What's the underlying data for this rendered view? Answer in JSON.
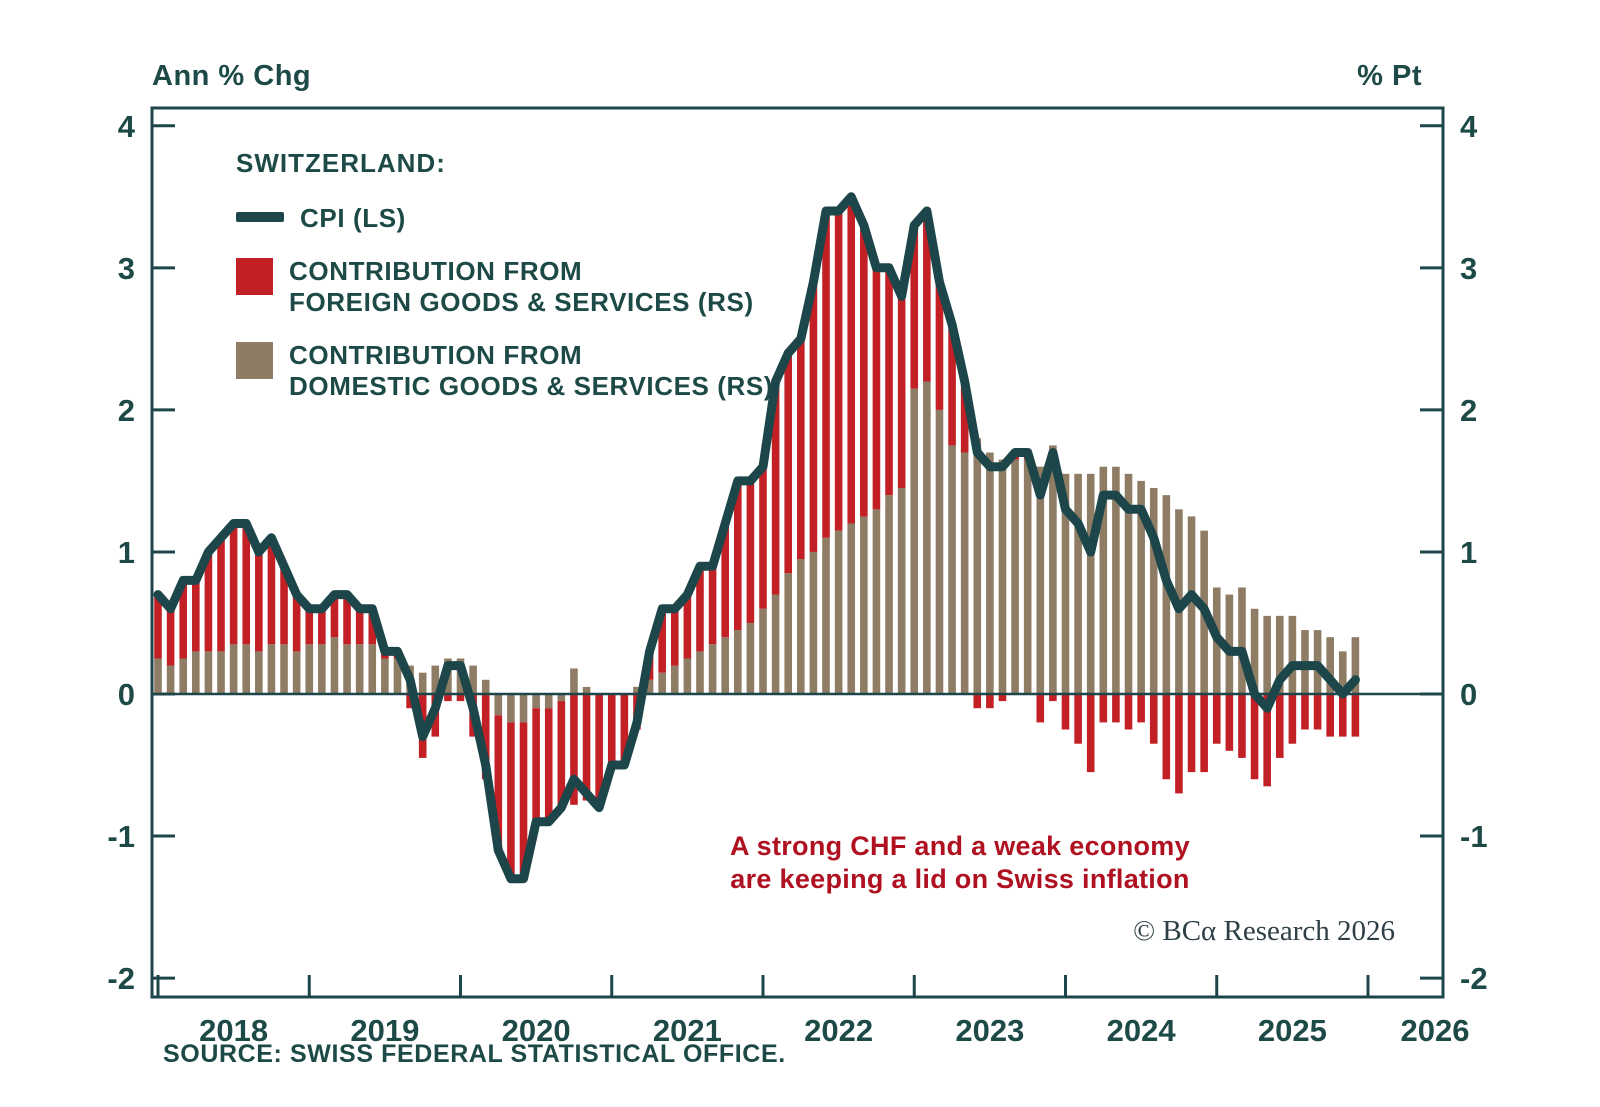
{
  "header": {
    "left_axis_title": "Ann % Chg",
    "right_axis_title": "% Pt"
  },
  "legend": {
    "title": "SWITZERLAND:",
    "cpi_label": "CPI (LS)",
    "foreign_label_line1": "CONTRIBUTION FROM",
    "foreign_label_line2": "FOREIGN GOODS & SERVICES (RS)",
    "domestic_label_line1": "CONTRIBUTION FROM",
    "domestic_label_line2": "DOMESTIC GOODS & SERVICES (RS)"
  },
  "annotation": {
    "line1": "A strong CHF and a weak economy",
    "line2": "are keeping a lid on Swiss inflation"
  },
  "copyright": "© BCα Research 2026",
  "source": "SOURCE: SWISS FEDERAL STATISTICAL OFFICE.",
  "colors": {
    "line": "#1d464a",
    "foreign": "#c32026",
    "domestic": "#8e7c64",
    "text": "#1d4a47",
    "annotation": "#b01121"
  },
  "chart_data": {
    "type": "bar",
    "subtype": "stacked-bars-with-line-overlay",
    "title": "SWITZERLAND: CPI and contributions",
    "xlabel": "",
    "ylabel_left": "Ann % Chg",
    "ylabel_right": "% Pt",
    "start_month": "2018-01",
    "frequency": "monthly",
    "ylim": [
      -2.13,
      4.13
    ],
    "yticks": [
      4,
      3,
      2,
      1,
      0,
      -1,
      -2
    ],
    "year_labels": [
      "2018",
      "2019",
      "2020",
      "2021",
      "2022",
      "2023",
      "2024",
      "2025",
      "2026"
    ],
    "grid": "zero-line-only",
    "legend_position": "top-left-inside",
    "series": [
      {
        "name": "CPI (LS)",
        "type": "line",
        "axis": "left",
        "values": [
          0.7,
          0.6,
          0.8,
          0.8,
          1.0,
          1.1,
          1.2,
          1.2,
          1.0,
          1.1,
          0.9,
          0.7,
          0.6,
          0.6,
          0.7,
          0.7,
          0.6,
          0.6,
          0.3,
          0.3,
          0.1,
          -0.3,
          -0.1,
          0.2,
          0.2,
          -0.1,
          -0.5,
          -1.1,
          -1.3,
          -1.3,
          -0.9,
          -0.9,
          -0.8,
          -0.6,
          -0.7,
          -0.8,
          -0.5,
          -0.5,
          -0.2,
          0.3,
          0.6,
          0.6,
          0.7,
          0.9,
          0.9,
          1.2,
          1.5,
          1.5,
          1.6,
          2.2,
          2.4,
          2.5,
          2.9,
          3.4,
          3.4,
          3.5,
          3.3,
          3.0,
          3.0,
          2.8,
          3.3,
          3.4,
          2.9,
          2.6,
          2.2,
          1.7,
          1.6,
          1.6,
          1.7,
          1.7,
          1.4,
          1.7,
          1.3,
          1.2,
          1.0,
          1.4,
          1.4,
          1.3,
          1.3,
          1.1,
          0.8,
          0.6,
          0.7,
          0.6,
          0.4,
          0.3,
          0.3,
          0.0,
          -0.1,
          0.1,
          0.2,
          0.2,
          0.2,
          0.1,
          0.0,
          0.1
        ]
      },
      {
        "name": "CONTRIBUTION FROM FOREIGN GOODS & SERVICES (RS)",
        "type": "bar",
        "axis": "right",
        "values": [
          0.45,
          0.4,
          0.55,
          0.5,
          0.7,
          0.8,
          0.85,
          0.85,
          0.7,
          0.75,
          0.55,
          0.4,
          0.25,
          0.25,
          0.3,
          0.35,
          0.25,
          0.25,
          0.05,
          0.05,
          -0.1,
          -0.45,
          -0.3,
          -0.05,
          -0.05,
          -0.3,
          -0.6,
          -0.95,
          -1.1,
          -1.1,
          -0.8,
          -0.8,
          -0.75,
          -0.78,
          -0.75,
          -0.8,
          -0.5,
          -0.5,
          -0.25,
          0.2,
          0.45,
          0.4,
          0.45,
          0.6,
          0.55,
          0.8,
          1.05,
          1.0,
          1.0,
          1.5,
          1.55,
          1.55,
          1.9,
          2.3,
          2.25,
          2.3,
          2.05,
          1.7,
          1.6,
          1.35,
          1.15,
          1.2,
          0.9,
          0.85,
          0.5,
          -0.1,
          -0.1,
          -0.05,
          0.05,
          0.05,
          -0.2,
          -0.05,
          -0.25,
          -0.35,
          -0.55,
          -0.2,
          -0.2,
          -0.25,
          -0.2,
          -0.35,
          -0.6,
          -0.7,
          -0.55,
          -0.55,
          -0.35,
          -0.4,
          -0.45,
          -0.6,
          -0.65,
          -0.45,
          -0.35,
          -0.25,
          -0.25,
          -0.3,
          -0.3,
          -0.3
        ]
      },
      {
        "name": "CONTRIBUTION FROM DOMESTIC GOODS & SERVICES (RS)",
        "type": "bar",
        "axis": "right",
        "values": [
          0.25,
          0.2,
          0.25,
          0.3,
          0.3,
          0.3,
          0.35,
          0.35,
          0.3,
          0.35,
          0.35,
          0.3,
          0.35,
          0.35,
          0.4,
          0.35,
          0.35,
          0.35,
          0.25,
          0.25,
          0.2,
          0.15,
          0.2,
          0.25,
          0.25,
          0.2,
          0.1,
          -0.15,
          -0.2,
          -0.2,
          -0.1,
          -0.1,
          -0.05,
          0.18,
          0.05,
          0.0,
          0.0,
          0.0,
          0.05,
          0.1,
          0.15,
          0.2,
          0.25,
          0.3,
          0.35,
          0.4,
          0.45,
          0.5,
          0.6,
          0.7,
          0.85,
          0.95,
          1.0,
          1.1,
          1.15,
          1.2,
          1.25,
          1.3,
          1.4,
          1.45,
          2.15,
          2.2,
          2.0,
          1.75,
          1.7,
          1.8,
          1.7,
          1.65,
          1.65,
          1.65,
          1.6,
          1.75,
          1.55,
          1.55,
          1.55,
          1.6,
          1.6,
          1.55,
          1.5,
          1.45,
          1.4,
          1.3,
          1.25,
          1.15,
          0.75,
          0.7,
          0.75,
          0.6,
          0.55,
          0.55,
          0.55,
          0.45,
          0.45,
          0.4,
          0.3,
          0.4
        ]
      }
    ]
  }
}
